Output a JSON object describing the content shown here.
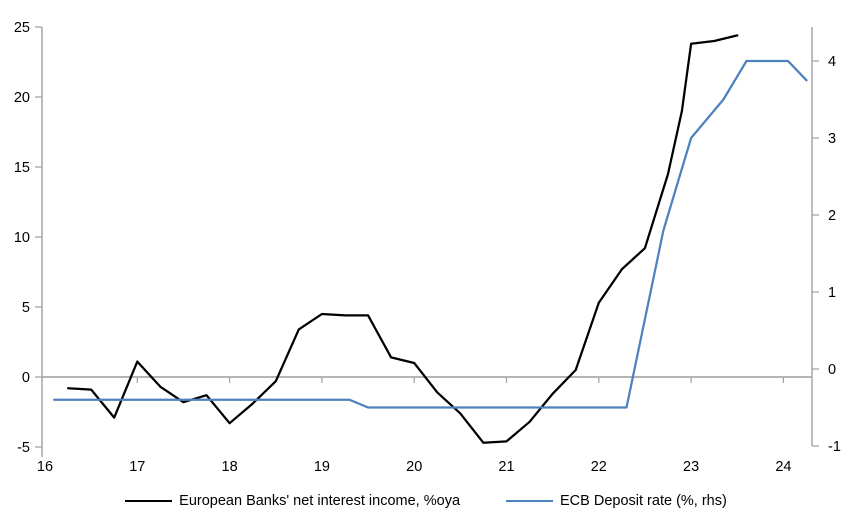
{
  "chart_data": {
    "type": "line",
    "title": "",
    "x_axis": {
      "ticks": [
        16,
        17,
        18,
        19,
        20,
        21,
        22,
        23,
        24
      ],
      "range": [
        16,
        24.3
      ]
    },
    "left_axis": {
      "ticks": [
        25,
        20,
        15,
        10,
        5,
        0,
        -5
      ],
      "range": [
        -5.7,
        25
      ]
    },
    "right_axis": {
      "ticks": [
        4,
        3,
        2,
        1,
        0,
        -1
      ],
      "range": [
        -1,
        4.45
      ]
    },
    "grid": "zero-line-only",
    "legend_position": "bottom-center",
    "series": [
      {
        "name": "European Banks' net interest income, %oya",
        "axis": "left",
        "color": "#000000",
        "points": [
          [
            16.25,
            -0.8
          ],
          [
            16.5,
            -0.9
          ],
          [
            16.75,
            -2.9
          ],
          [
            17.0,
            1.1
          ],
          [
            17.25,
            -0.7
          ],
          [
            17.5,
            -1.8
          ],
          [
            17.75,
            -1.3
          ],
          [
            18.0,
            -3.3
          ],
          [
            18.25,
            -1.9
          ],
          [
            18.5,
            -0.3
          ],
          [
            18.75,
            3.4
          ],
          [
            19.0,
            4.5
          ],
          [
            19.25,
            4.4
          ],
          [
            19.5,
            4.4
          ],
          [
            19.75,
            1.4
          ],
          [
            20.0,
            1.0
          ],
          [
            20.25,
            -1.1
          ],
          [
            20.5,
            -2.6
          ],
          [
            20.75,
            -4.7
          ],
          [
            21.0,
            -4.6
          ],
          [
            21.25,
            -3.2
          ],
          [
            21.5,
            -1.2
          ],
          [
            21.75,
            0.5
          ],
          [
            22.0,
            5.3
          ],
          [
            22.25,
            7.7
          ],
          [
            22.5,
            9.2
          ],
          [
            22.75,
            14.5
          ],
          [
            22.9,
            19.0
          ],
          [
            23.0,
            23.8
          ],
          [
            23.25,
            24.0
          ],
          [
            23.5,
            24.4
          ]
        ]
      },
      {
        "name": "ECB Deposit rate (%, rhs)",
        "axis": "right",
        "color": "#4E81BD",
        "points": [
          [
            16.1,
            -0.4
          ],
          [
            19.3,
            -0.4
          ],
          [
            19.5,
            -0.5
          ],
          [
            22.3,
            -0.5
          ],
          [
            22.7,
            1.8
          ],
          [
            23.0,
            3.0
          ],
          [
            23.35,
            3.5
          ],
          [
            23.6,
            4.0
          ],
          [
            24.05,
            4.0
          ],
          [
            24.25,
            3.75
          ]
        ]
      }
    ]
  },
  "colors": {
    "background": "#FFFFFF",
    "axis": "#A6A6A6",
    "zero_line": "#9B9B9B",
    "text": "#000000",
    "series_black": "#000000",
    "series_blue": "#4E81BD"
  }
}
